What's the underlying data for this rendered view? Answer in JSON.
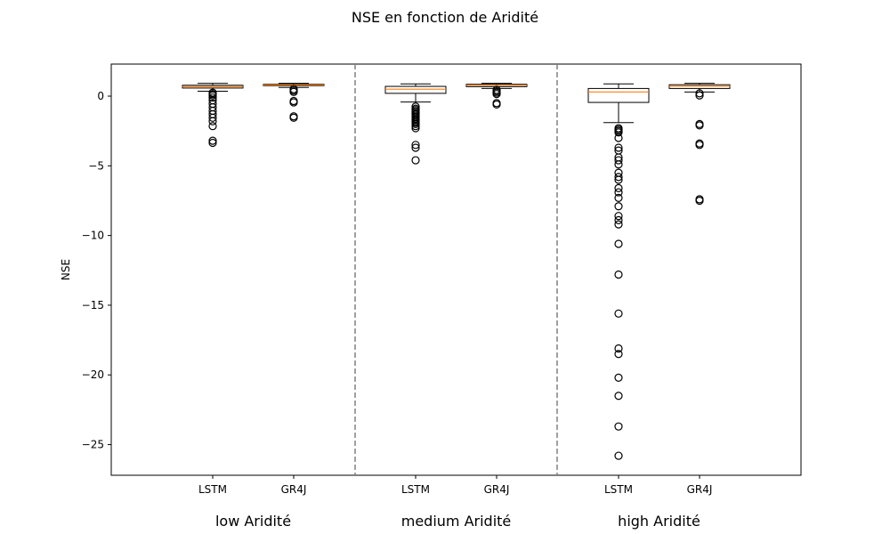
{
  "chart_data": {
    "type": "box",
    "title": "NSE en fonction de Aridité",
    "ylabel": "NSE",
    "xlabel": "",
    "ylim": [
      -27.2,
      2.3
    ],
    "yticks": [
      0,
      -5,
      -10,
      -15,
      -20,
      -25
    ],
    "ytick_labels": [
      "0",
      "−5",
      "−10",
      "−15",
      "−20",
      "−25"
    ],
    "grid": false,
    "colors": {
      "box_edge": "#000000",
      "median": "#ff7f0e",
      "divider": "#808080"
    },
    "groups": [
      {
        "label": "low Aridité",
        "boxes": [
          {
            "label": "LSTM",
            "whisker_low": 0.35,
            "q1": 0.58,
            "median": 0.69,
            "q3": 0.78,
            "whisker_high": 0.92,
            "outliers": [
              0.25,
              0.15,
              0.05,
              -0.1,
              -0.3,
              -0.55,
              -0.8,
              -1.05,
              -1.3,
              -1.55,
              -1.8,
              -2.15,
              -3.2,
              -3.35
            ]
          },
          {
            "label": "GR4J",
            "whisker_low": 0.62,
            "q1": 0.75,
            "median": 0.8,
            "q3": 0.85,
            "whisker_high": 0.92,
            "outliers": [
              0.5,
              0.4,
              0.3,
              -0.35,
              -0.45,
              -1.45,
              -1.55
            ]
          }
        ]
      },
      {
        "label": "medium Aridité",
        "boxes": [
          {
            "label": "LSTM",
            "whisker_low": -0.42,
            "q1": 0.2,
            "median": 0.5,
            "q3": 0.7,
            "whisker_high": 0.88,
            "outliers": [
              -0.75,
              -0.9,
              -1.0,
              -1.1,
              -1.2,
              -1.3,
              -1.4,
              -1.5,
              -1.6,
              -1.7,
              -1.8,
              -1.9,
              -2.0,
              -2.15,
              -2.3,
              -3.5,
              -3.7,
              -4.6
            ]
          },
          {
            "label": "GR4J",
            "whisker_low": 0.55,
            "q1": 0.68,
            "median": 0.78,
            "q3": 0.85,
            "whisker_high": 0.92,
            "outliers": [
              0.45,
              0.35,
              0.25,
              0.15,
              -0.5,
              -0.6
            ]
          }
        ]
      },
      {
        "label": "high Aridité",
        "boxes": [
          {
            "label": "LSTM",
            "whisker_low": -1.9,
            "q1": -0.45,
            "median": 0.3,
            "q3": 0.55,
            "whisker_high": 0.88,
            "outliers": [
              -2.3,
              -2.4,
              -2.5,
              -2.6,
              -3.0,
              -3.7,
              -3.9,
              -4.4,
              -4.6,
              -4.9,
              -5.5,
              -5.8,
              -6.0,
              -6.6,
              -6.9,
              -7.3,
              -7.9,
              -8.6,
              -8.9,
              -9.2,
              -10.6,
              -12.8,
              -15.6,
              -18.1,
              -18.5,
              -20.2,
              -21.5,
              -23.7,
              -25.8
            ]
          },
          {
            "label": "GR4J",
            "whisker_low": 0.3,
            "q1": 0.55,
            "median": 0.72,
            "q3": 0.82,
            "whisker_high": 0.92,
            "outliers": [
              0.2,
              0.05,
              -2.0,
              -2.1,
              -3.4,
              -3.5,
              -7.4,
              -7.5
            ]
          }
        ]
      }
    ]
  }
}
